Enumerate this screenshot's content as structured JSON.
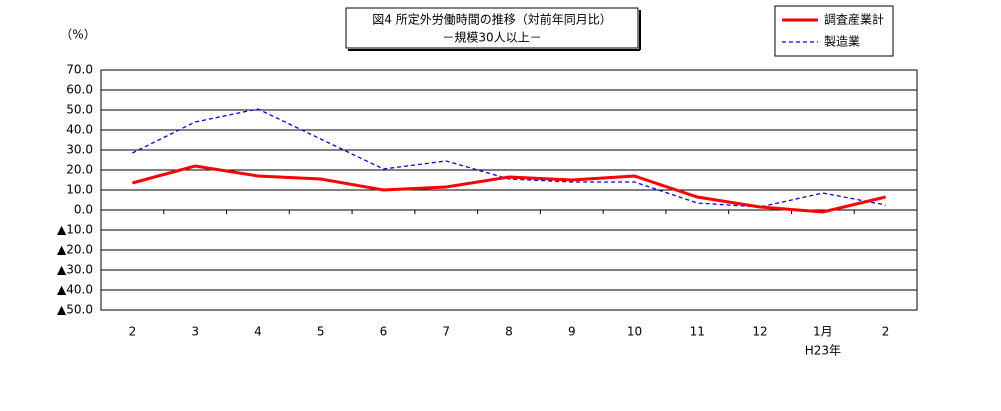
{
  "chart_data": {
    "type": "line",
    "title": "図4 所定外労働時間の推移（対前年同月比）",
    "subtitle": "－規模30人以上－",
    "y_label": "（%）",
    "categories": [
      "2",
      "3",
      "4",
      "5",
      "6",
      "7",
      "8",
      "9",
      "10",
      "11",
      "12",
      "1月",
      "2"
    ],
    "x_annotation": "H23年",
    "series": [
      {
        "name": "調査産業計",
        "color": "#ff0000",
        "values": [
          13.5,
          22,
          17,
          15.5,
          10,
          11.5,
          16.5,
          15,
          17,
          6.5,
          1.5,
          -1,
          6.5
        ]
      },
      {
        "name": "製造業",
        "color": "#0000ff",
        "values": [
          28.5,
          44,
          50.5,
          35.5,
          20.5,
          24.5,
          15.5,
          14,
          14,
          3.5,
          1.5,
          8.5,
          2.5
        ]
      }
    ],
    "ylim": [
      -50,
      70
    ],
    "yticks": [
      {
        "value": 70,
        "label": "70.0"
      },
      {
        "value": 60,
        "label": "60.0"
      },
      {
        "value": 50,
        "label": "50.0"
      },
      {
        "value": 40,
        "label": "40.0"
      },
      {
        "value": 30,
        "label": "30.0"
      },
      {
        "value": 20,
        "label": "20.0"
      },
      {
        "value": 10,
        "label": "10.0"
      },
      {
        "value": 0,
        "label": "0.0"
      },
      {
        "value": -10,
        "label": "▲10.0"
      },
      {
        "value": -20,
        "label": "▲20.0"
      },
      {
        "value": -30,
        "label": "▲30.0"
      },
      {
        "value": -40,
        "label": "▲40.0"
      },
      {
        "value": -50,
        "label": "▲50.0"
      }
    ],
    "grid": true
  }
}
